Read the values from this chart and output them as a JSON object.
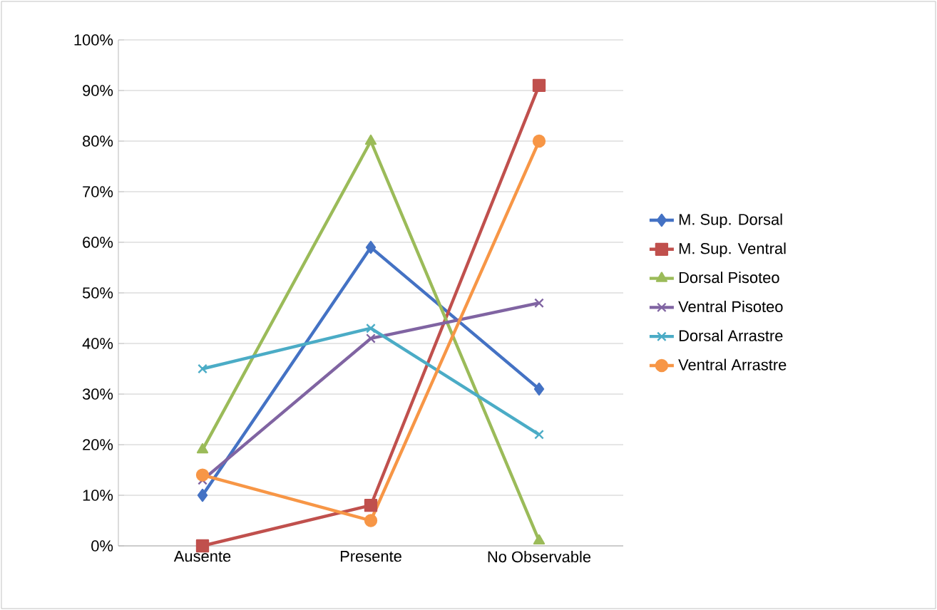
{
  "chart_data": {
    "type": "line",
    "categories": [
      "Ausente",
      "Presente",
      "No Observable"
    ],
    "series": [
      {
        "name": "M. Sup. Dorsal",
        "color": "#4472c4",
        "marker": "diamond",
        "values": [
          10,
          59,
          31
        ]
      },
      {
        "name": "M. Sup. Ventral",
        "color": "#c0504d",
        "marker": "square",
        "values": [
          0,
          8,
          91
        ]
      },
      {
        "name": "Dorsal Pisoteo",
        "color": "#9bbb59",
        "marker": "triangle",
        "values": [
          19,
          80,
          1
        ]
      },
      {
        "name": "Ventral Pisoteo",
        "color": "#8064a2",
        "marker": "cross",
        "values": [
          13,
          41,
          48
        ]
      },
      {
        "name": "Dorsal Arrastre",
        "color": "#4bacc6",
        "marker": "cross",
        "values": [
          35,
          43,
          22
        ]
      },
      {
        "name": "Ventral Arrastre",
        "color": "#f79646",
        "marker": "circle",
        "values": [
          14,
          5,
          80
        ]
      }
    ],
    "ylim": [
      0,
      100
    ],
    "yticks": [
      {
        "value": 0,
        "label": "0%"
      },
      {
        "value": 10,
        "label": "10%"
      },
      {
        "value": 20,
        "label": "20%"
      },
      {
        "value": 30,
        "label": "30%"
      },
      {
        "value": 40,
        "label": "40%"
      },
      {
        "value": 50,
        "label": "50%"
      },
      {
        "value": 60,
        "label": "60%"
      },
      {
        "value": 70,
        "label": "70%"
      },
      {
        "value": 80,
        "label": "80%"
      },
      {
        "value": 90,
        "label": "90%"
      },
      {
        "value": 100,
        "label": "100%"
      }
    ],
    "grid": "y",
    "legend": "right",
    "line_style": "solid"
  }
}
